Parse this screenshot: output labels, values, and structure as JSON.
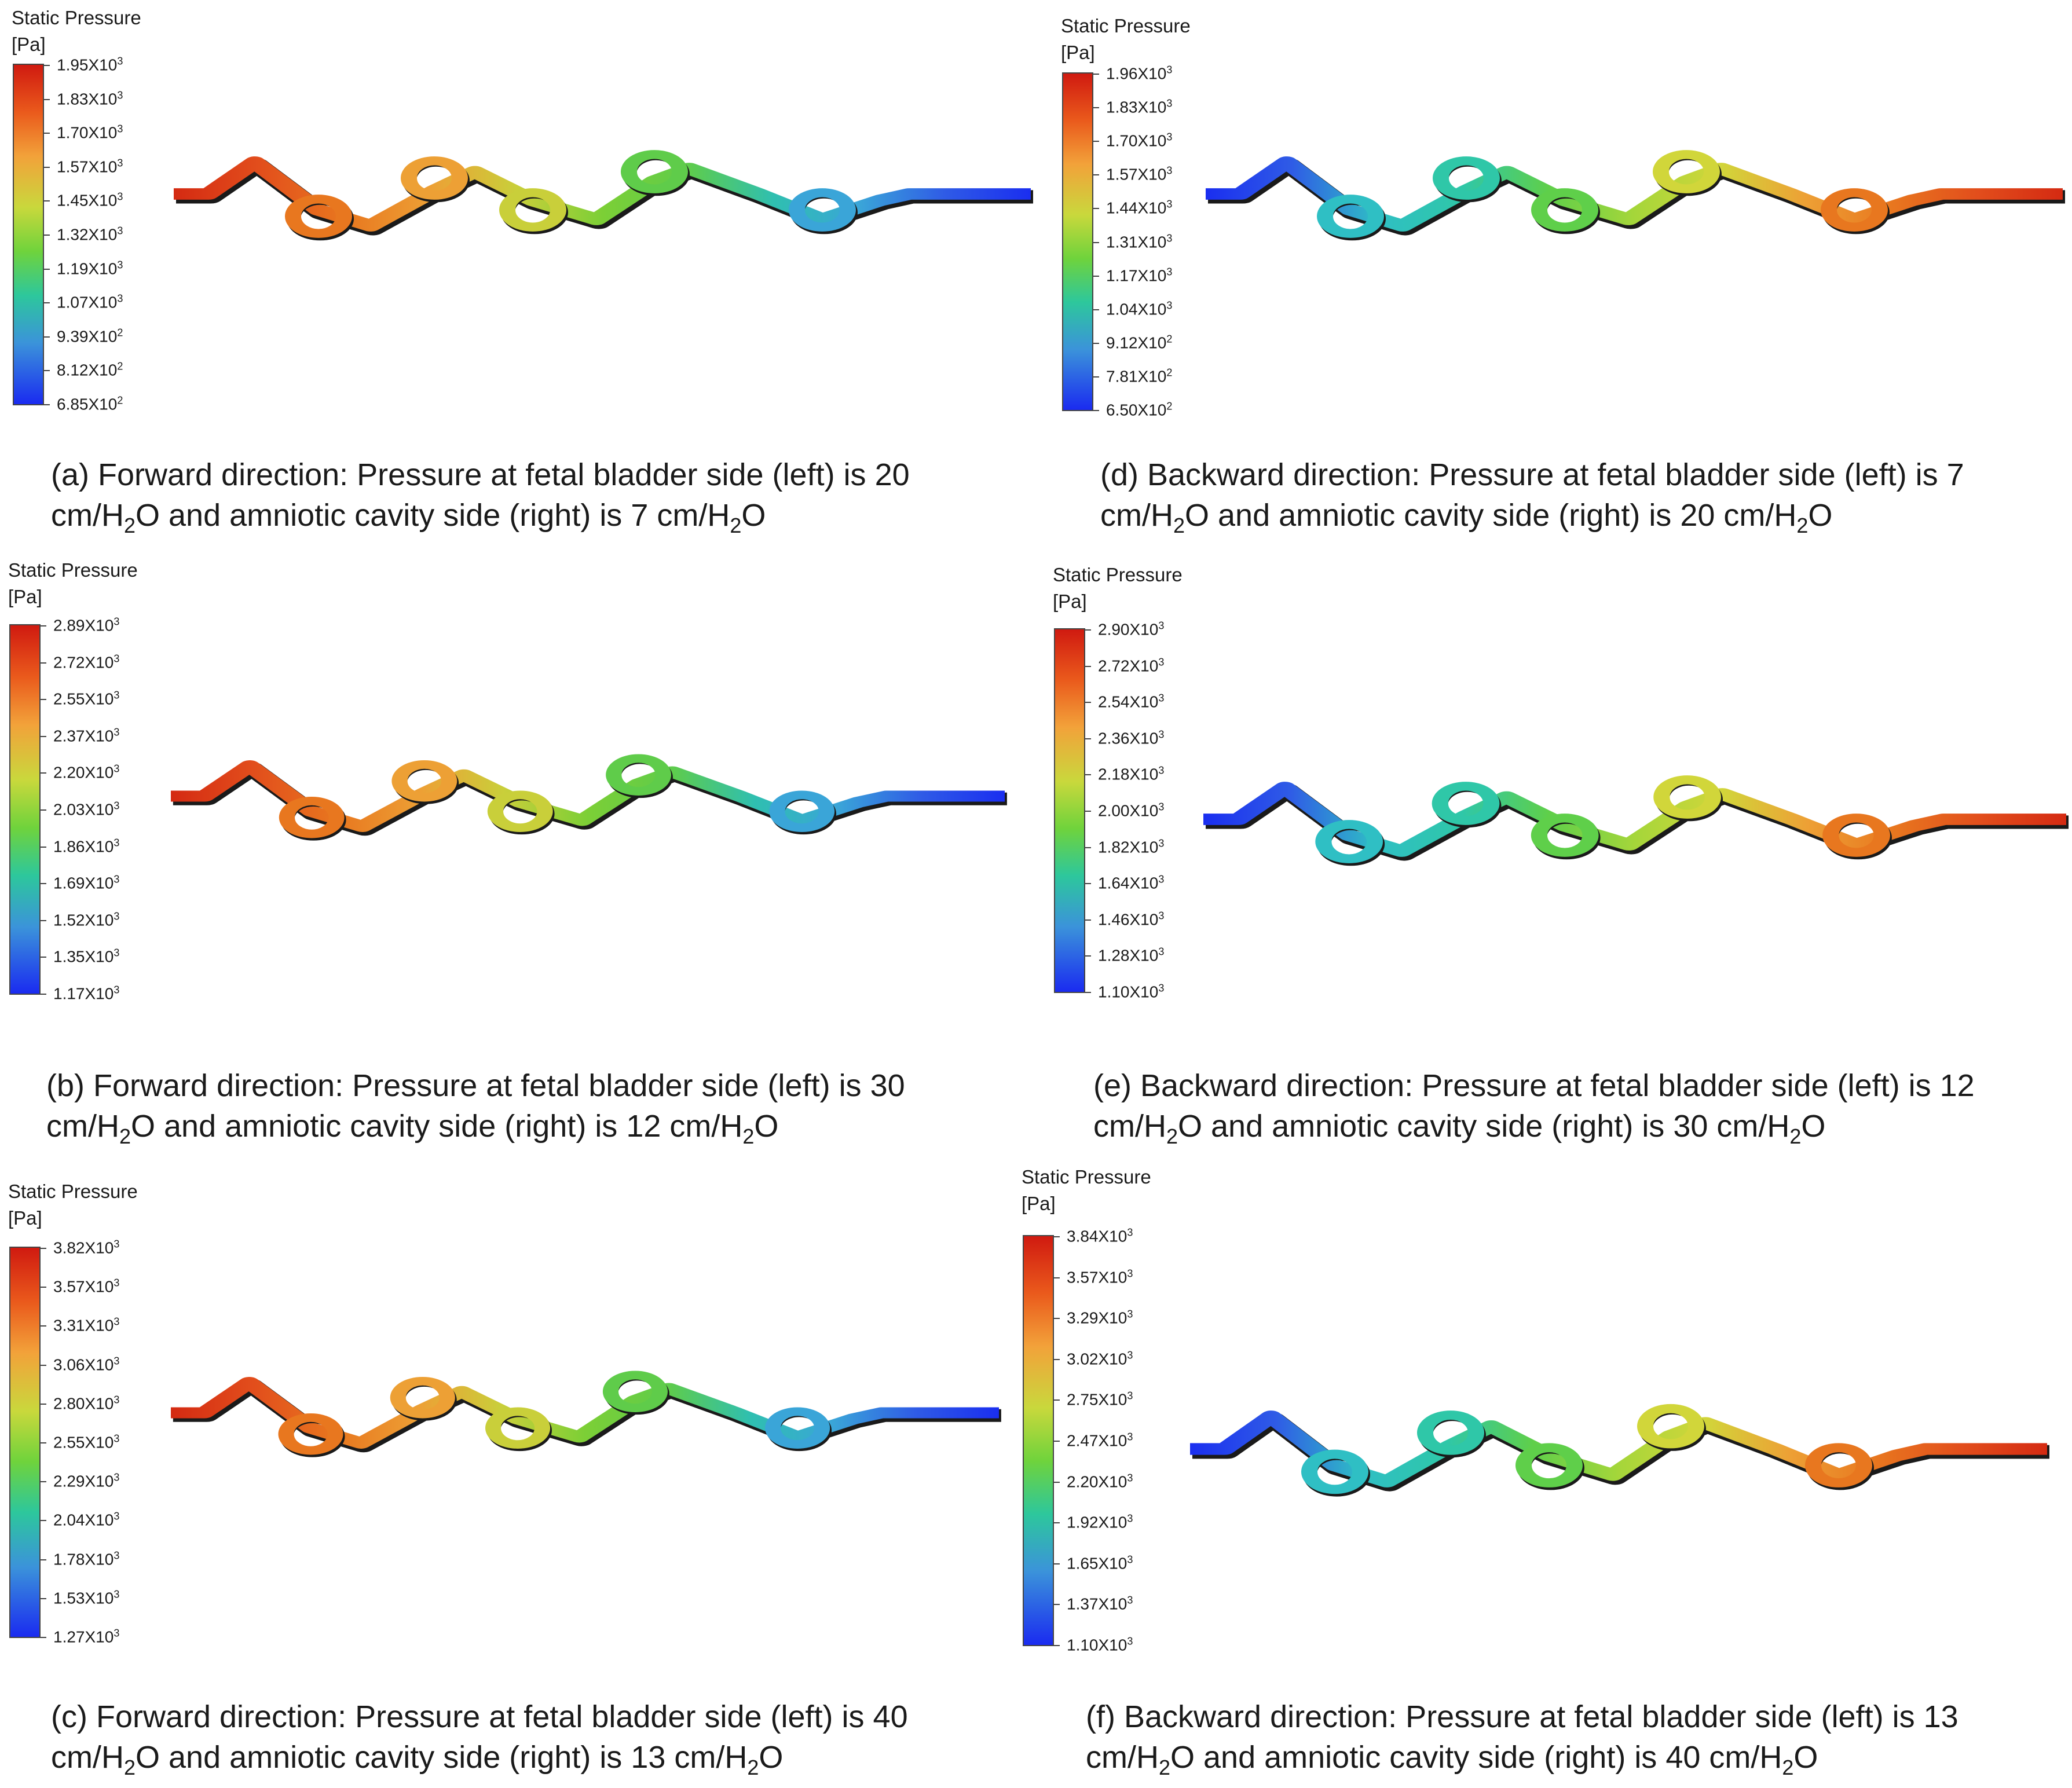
{
  "colorbar_title_line1": "Static Pressure",
  "colorbar_unit": "[Pa]",
  "panels": [
    {
      "id": "a",
      "ticks": [
        "1.95X10",
        "1.83X10",
        "1.70X10",
        "1.57X10",
        "1.45X10",
        "1.32X10",
        "1.19X10",
        "1.07X10",
        "9.39X10",
        "8.12X10",
        "6.85X10"
      ],
      "exps": [
        "3",
        "3",
        "3",
        "3",
        "3",
        "3",
        "3",
        "3",
        "2",
        "2",
        "2"
      ],
      "direction": "forward",
      "gradient": [
        "#d42a12",
        "#e24e1c",
        "#e8771f",
        "#eda035",
        "#c9cf3a",
        "#7ccf36",
        "#5fcc4a",
        "#2fbfb0",
        "#3aa5d8",
        "#2f5be6",
        "#1a2ef0"
      ],
      "caption_line1": "(a) Forward direction: Pressure at fetal bladder side (left) is 20",
      "caption_line2_a": "cm/H",
      "caption_line2_sub": "2",
      "caption_line2_b": "O and amniotic cavity side (right) is 7 cm/H",
      "caption_line2_sub2": "2",
      "caption_line2_c": "O"
    },
    {
      "id": "d",
      "ticks": [
        "1.96X10",
        "1.83X10",
        "1.70X10",
        "1.57X10",
        "1.44X10",
        "1.31X10",
        "1.17X10",
        "1.04X10",
        "9.12X10",
        "7.81X10",
        "6.50X10"
      ],
      "exps": [
        "3",
        "3",
        "3",
        "3",
        "3",
        "3",
        "3",
        "3",
        "2",
        "2",
        "2"
      ],
      "direction": "backward",
      "gradient": [
        "#1a2ef0",
        "#2f5be6",
        "#2fbfc4",
        "#2fc7a8",
        "#5fcf4a",
        "#a5d63a",
        "#d1d63a",
        "#eda035",
        "#e8771f",
        "#e24e1c",
        "#d42a12"
      ],
      "caption_line1": "(d) Backward direction: Pressure at fetal bladder side (left) is 7",
      "caption_line2_a": "cm/H",
      "caption_line2_sub": "2",
      "caption_line2_b": "O and amniotic cavity side (right) is 20 cm/H",
      "caption_line2_sub2": "2",
      "caption_line2_c": "O"
    },
    {
      "id": "b",
      "ticks": [
        "2.89X10",
        "2.72X10",
        "2.55X10",
        "2.37X10",
        "2.20X10",
        "2.03X10",
        "1.86X10",
        "1.69X10",
        "1.52X10",
        "1.35X10",
        "1.17X10"
      ],
      "exps": [
        "3",
        "3",
        "3",
        "3",
        "3",
        "3",
        "3",
        "3",
        "3",
        "3",
        "3"
      ],
      "direction": "forward",
      "gradient": [
        "#d42a12",
        "#e24e1c",
        "#e8771f",
        "#eda035",
        "#c9cf3a",
        "#7ccf36",
        "#5fcc4a",
        "#2fbfb0",
        "#3aa5d8",
        "#2f5be6",
        "#1a2ef0"
      ],
      "caption_line1": "(b) Forward direction: Pressure at fetal bladder side (left) is 30",
      "caption_line2_a": "cm/H",
      "caption_line2_sub": "2",
      "caption_line2_b": "O and amniotic cavity side (right) is 12 cm/H",
      "caption_line2_sub2": "2",
      "caption_line2_c": "O"
    },
    {
      "id": "e",
      "ticks": [
        "2.90X10",
        "2.72X10",
        "2.54X10",
        "2.36X10",
        "2.18X10",
        "2.00X10",
        "1.82X10",
        "1.64X10",
        "1.46X10",
        "1.28X10",
        "1.10X10"
      ],
      "exps": [
        "3",
        "3",
        "3",
        "3",
        "3",
        "3",
        "3",
        "3",
        "3",
        "3",
        "3"
      ],
      "direction": "backward",
      "gradient": [
        "#1a2ef0",
        "#2f5be6",
        "#2fbfc4",
        "#2fc7a8",
        "#5fcf4a",
        "#a5d63a",
        "#d1d63a",
        "#eda035",
        "#e8771f",
        "#e24e1c",
        "#d42a12"
      ],
      "caption_line1": "(e) Backward direction: Pressure at fetal bladder side (left) is 12",
      "caption_line2_a": "cm/H",
      "caption_line2_sub": "2",
      "caption_line2_b": "O and amniotic cavity side (right) is 30 cm/H",
      "caption_line2_sub2": "2",
      "caption_line2_c": "O"
    },
    {
      "id": "c",
      "ticks": [
        "3.82X10",
        "3.57X10",
        "3.31X10",
        "3.06X10",
        "2.80X10",
        "2.55X10",
        "2.29X10",
        "2.04X10",
        "1.78X10",
        "1.53X10",
        "1.27X10"
      ],
      "exps": [
        "3",
        "3",
        "3",
        "3",
        "3",
        "3",
        "3",
        "3",
        "3",
        "3",
        "3"
      ],
      "direction": "forward",
      "gradient": [
        "#d42a12",
        "#e24e1c",
        "#e8771f",
        "#eda035",
        "#c9cf3a",
        "#7ccf36",
        "#5fcc4a",
        "#2fbfb0",
        "#3aa5d8",
        "#2f5be6",
        "#1a2ef0"
      ],
      "caption_line1": "(c) Forward direction: Pressure at fetal bladder side (left) is 40",
      "caption_line2_a": "cm/H",
      "caption_line2_sub": "2",
      "caption_line2_b": "O and amniotic cavity side (right) is 13 cm/H",
      "caption_line2_sub2": "2",
      "caption_line2_c": "O"
    },
    {
      "id": "f",
      "ticks": [
        "3.84X10",
        "3.57X10",
        "3.29X10",
        "3.02X10",
        "2.75X10",
        "2.47X10",
        "2.20X10",
        "1.92X10",
        "1.65X10",
        "1.37X10",
        "1.10X10"
      ],
      "exps": [
        "3",
        "3",
        "3",
        "3",
        "3",
        "3",
        "3",
        "3",
        "3",
        "3",
        "3"
      ],
      "direction": "backward",
      "gradient": [
        "#1a2ef0",
        "#2f5be6",
        "#2fbfc4",
        "#2fc7a8",
        "#5fcf4a",
        "#a5d63a",
        "#d1d63a",
        "#eda035",
        "#e8771f",
        "#e24e1c",
        "#d42a12"
      ],
      "caption_line1": "(f) Backward direction: Pressure at fetal bladder side (left) is 13",
      "caption_line2_a": "cm/H",
      "caption_line2_sub": "2",
      "caption_line2_b": "O and amniotic cavity side (right) is 40 cm/H",
      "caption_line2_sub2": "2",
      "caption_line2_c": "O"
    }
  ]
}
